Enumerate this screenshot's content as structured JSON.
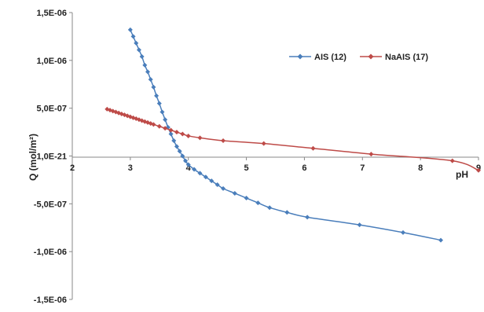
{
  "chart_data": {
    "type": "line",
    "title": "",
    "xlabel": "pH",
    "ylabel": "Q (mol/m²)",
    "xlim": [
      2,
      9
    ],
    "ylim": [
      -1.5e-06,
      1.5e-06
    ],
    "x_ticks": [
      2,
      3,
      4,
      5,
      6,
      7,
      8,
      9
    ],
    "x_tick_labels": [
      "2",
      "3",
      "4",
      "5",
      "6",
      "7",
      "8",
      "9"
    ],
    "y_ticks": [
      1.5e-06,
      1e-06,
      5e-07,
      1e-21,
      -5e-07,
      -1e-06,
      -1.5e-06
    ],
    "y_tick_labels": [
      "1,5E-06",
      "1,0E-06",
      "5,0E-07",
      "1,0E-21",
      "-5,0E-07",
      "-1,0E-06",
      "-1,5E-06"
    ],
    "grid": false,
    "legend_position": "top-right",
    "series": [
      {
        "name": "AIS (12)",
        "color": "#4a7ebb",
        "marker": "diamond",
        "x": [
          3.0,
          3.05,
          3.1,
          3.15,
          3.2,
          3.25,
          3.3,
          3.35,
          3.4,
          3.45,
          3.5,
          3.55,
          3.6,
          3.65,
          3.7,
          3.75,
          3.8,
          3.85,
          3.9,
          3.95,
          4.0,
          4.1,
          4.2,
          4.3,
          4.4,
          4.5,
          4.6,
          4.8,
          5.0,
          5.2,
          5.4,
          5.7,
          6.05,
          6.95,
          7.7,
          8.35
        ],
        "y": [
          1.32e-06,
          1.25e-06,
          1.18e-06,
          1.11e-06,
          1.04e-06,
          9.5e-07,
          8.8e-07,
          8e-07,
          7.2e-07,
          6.3e-07,
          5.5e-07,
          4.6e-07,
          3.8e-07,
          3e-07,
          2.3e-07,
          1.6e-07,
          1e-07,
          5e-08,
          0.0,
          -5e-08,
          -9e-08,
          -1.4e-07,
          -1.8e-07,
          -2.2e-07,
          -2.6e-07,
          -3e-07,
          -3.4e-07,
          -3.9e-07,
          -4.4e-07,
          -4.9e-07,
          -5.4e-07,
          -5.9e-07,
          -6.4e-07,
          -7.2e-07,
          -8e-07,
          -8.8e-07
        ]
      },
      {
        "name": "NaAIS (17)",
        "color": "#be4b48",
        "marker": "diamond",
        "x": [
          2.6,
          2.65,
          2.7,
          2.75,
          2.8,
          2.85,
          2.9,
          2.95,
          3.0,
          3.05,
          3.1,
          3.15,
          3.2,
          3.25,
          3.3,
          3.35,
          3.4,
          3.5,
          3.6,
          3.7,
          3.8,
          3.9,
          4.0,
          4.2,
          4.6,
          5.3,
          6.15,
          7.15,
          8.55,
          9.0
        ],
        "y": [
          4.9e-07,
          4.8e-07,
          4.7e-07,
          4.6e-07,
          4.5e-07,
          4.4e-07,
          4.3e-07,
          4.2e-07,
          4.1e-07,
          4e-07,
          3.9e-07,
          3.8e-07,
          3.7e-07,
          3.6e-07,
          3.5e-07,
          3.4e-07,
          3.3e-07,
          3.1e-07,
          2.9e-07,
          2.7e-07,
          2.5e-07,
          2.3e-07,
          2.1e-07,
          1.9e-07,
          1.6e-07,
          1.3e-07,
          8e-08,
          2e-08,
          -5e-08,
          -1.5e-07
        ]
      }
    ]
  }
}
